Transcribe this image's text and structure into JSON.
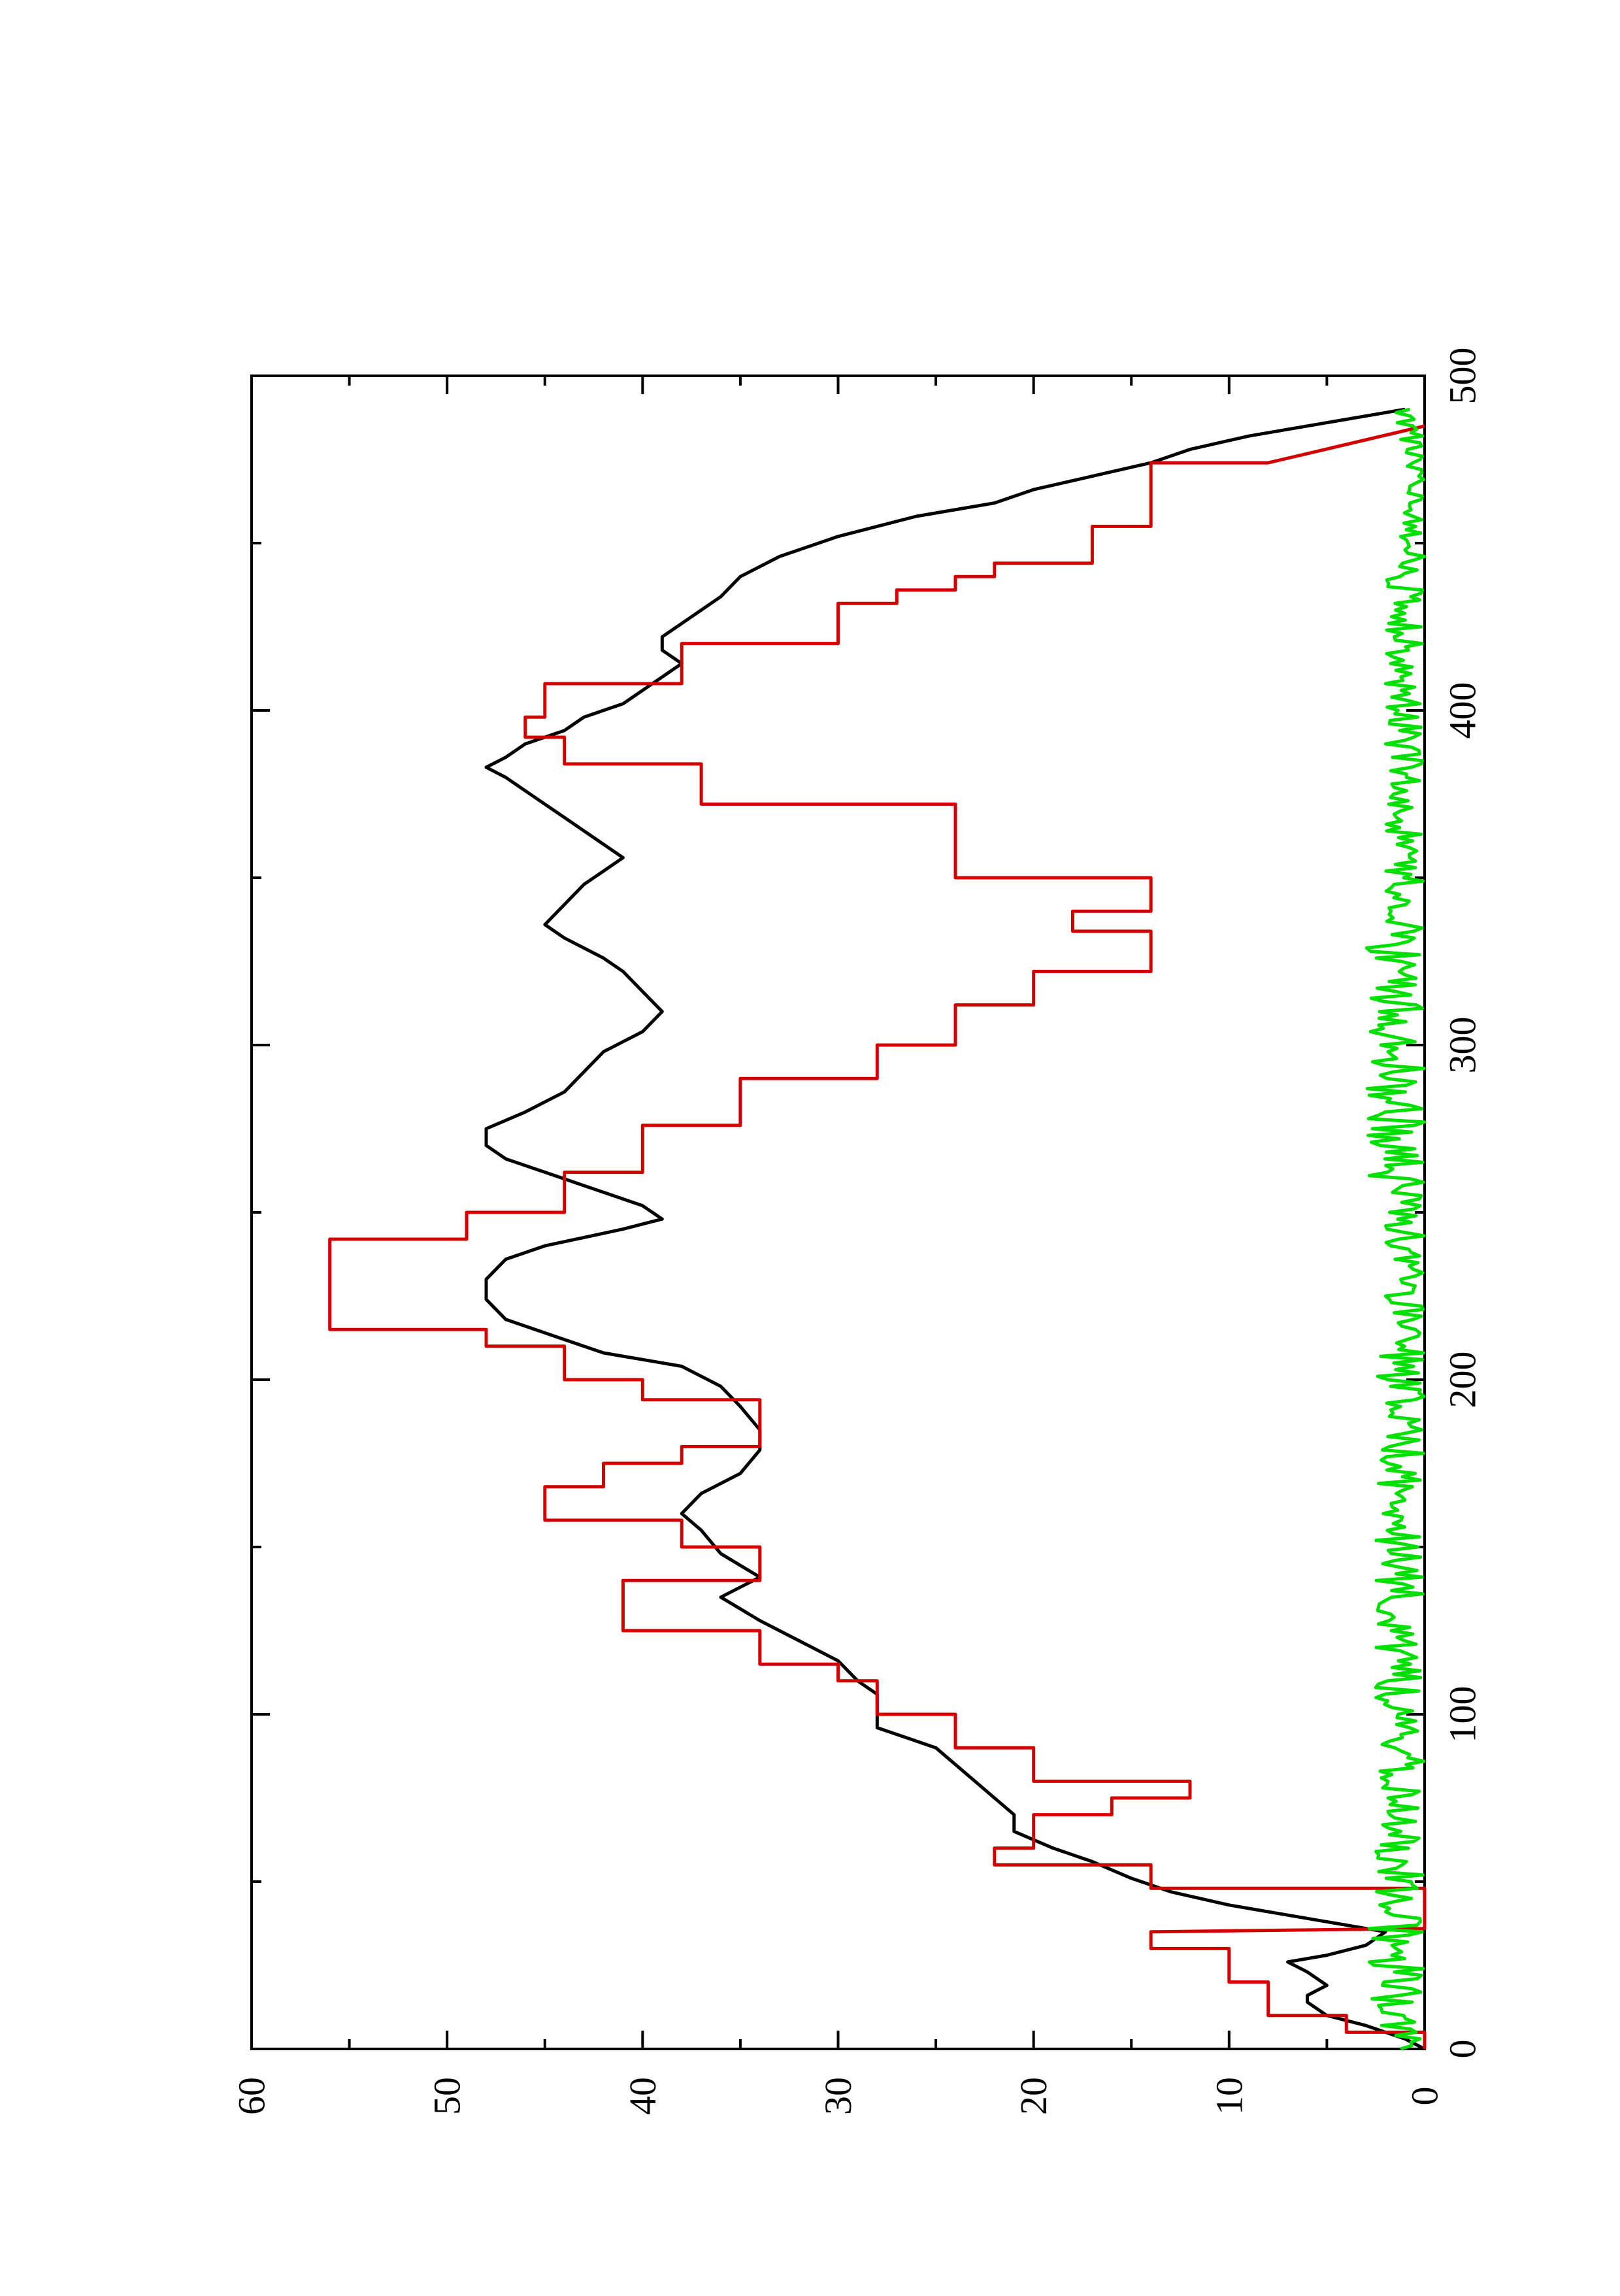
{
  "chart_data": {
    "type": "line",
    "orientation": "rotated-90-ccw",
    "xlim": [
      0,
      500
    ],
    "ylim": [
      0,
      60
    ],
    "x_ticks": [
      0,
      100,
      200,
      300,
      400,
      500
    ],
    "y_ticks": [
      0,
      10,
      20,
      30,
      40,
      50,
      60
    ],
    "grid": false,
    "series": [
      {
        "color": "#000000",
        "shape": "linear",
        "x": [
          0,
          3,
          7,
          10,
          14,
          16,
          19,
          23,
          26,
          28,
          31,
          35,
          39,
          43,
          47,
          51,
          56,
          60,
          65,
          70,
          75,
          80,
          85,
          90,
          96,
          100,
          106,
          110,
          116,
          122,
          128,
          135,
          141,
          148,
          155,
          160,
          166,
          172,
          179,
          185,
          192,
          198,
          204,
          208,
          212,
          218,
          224,
          230,
          236,
          240,
          245,
          248,
          252,
          256,
          260,
          266,
          270,
          275,
          280,
          286,
          292,
          298,
          304,
          310,
          316,
          322,
          326,
          332,
          336,
          342,
          348,
          352,
          356,
          360,
          364,
          368,
          372,
          376,
          380,
          383,
          386,
          390,
          394,
          398,
          402,
          406,
          410,
          414,
          418,
          422,
          426,
          430,
          434,
          440,
          446,
          452,
          458,
          462,
          466,
          470,
          474,
          478,
          482,
          486,
          490
        ],
        "y": [
          0,
          1,
          3,
          5,
          6,
          6,
          5,
          6,
          7,
          5,
          3,
          2,
          6,
          10,
          13,
          15,
          17,
          19,
          21,
          21,
          22,
          23,
          24,
          25,
          28,
          28,
          28,
          29,
          30,
          32,
          34,
          36,
          34,
          36,
          37,
          38,
          37,
          35,
          34,
          34,
          35,
          36,
          38,
          42,
          44,
          47,
          48,
          48,
          47,
          45,
          41,
          39,
          40,
          42,
          44,
          47,
          48,
          48,
          46,
          44,
          43,
          42,
          40,
          39,
          40,
          41,
          42,
          44,
          45,
          44,
          43,
          42,
          41,
          42,
          43,
          44,
          45,
          46,
          47,
          48,
          47,
          46,
          44,
          43,
          41,
          40,
          39,
          38,
          39,
          39,
          38,
          37,
          36,
          35,
          33,
          30,
          26,
          22,
          20,
          17,
          14,
          12,
          9,
          5,
          1
        ]
      },
      {
        "color": "#d40000",
        "shape": "linear",
        "x": [
          0,
          5,
          5,
          10,
          10,
          20,
          20,
          30,
          30,
          35,
          36,
          48,
          48,
          55,
          55,
          60,
          60,
          70,
          70,
          75,
          75,
          80,
          80,
          90,
          90,
          100,
          100,
          110,
          110,
          115,
          115,
          125,
          125,
          140,
          140,
          150,
          150,
          158,
          158,
          168,
          168,
          175,
          175,
          180,
          180,
          194,
          194,
          200,
          200,
          210,
          210,
          215,
          215,
          242,
          242,
          250,
          250,
          262,
          262,
          276,
          276,
          290,
          290,
          300,
          300,
          312,
          312,
          322,
          322,
          334,
          334,
          340,
          340,
          350,
          350,
          372,
          372,
          384,
          384,
          392,
          392,
          398,
          398,
          408,
          408,
          420,
          420,
          432,
          432,
          436,
          436,
          440,
          440,
          444,
          444,
          455,
          455,
          464,
          464,
          474,
          474,
          485
        ],
        "y": [
          0,
          0,
          4,
          4,
          8,
          8,
          10,
          10,
          14,
          14,
          0,
          0,
          14,
          14,
          22,
          22,
          20,
          20,
          16,
          16,
          12,
          12,
          20,
          20,
          24,
          24,
          28,
          28,
          30,
          30,
          34,
          34,
          41,
          41,
          34,
          34,
          38,
          38,
          45,
          45,
          42,
          42,
          38,
          38,
          34,
          34,
          40,
          40,
          44,
          44,
          48,
          48,
          56,
          56,
          49,
          49,
          44,
          44,
          40,
          40,
          35,
          35,
          28,
          28,
          24,
          24,
          20,
          20,
          14,
          14,
          18,
          18,
          14,
          14,
          24,
          24,
          37,
          37,
          44,
          44,
          46,
          46,
          45,
          45,
          38,
          38,
          30,
          30,
          27,
          27,
          24,
          24,
          22,
          22,
          17,
          17,
          14,
          14,
          14,
          14,
          8,
          0
        ]
      },
      {
        "color": "#00e000",
        "shape": "noise",
        "x_range": [
          0,
          490
        ],
        "x_step": 1,
        "band_segments": [
          {
            "x": [
              0,
              40
            ],
            "min": 0,
            "max": 3
          },
          {
            "x": [
              40,
              90
            ],
            "min": 0,
            "max": 2.5
          },
          {
            "x": [
              90,
              150
            ],
            "min": 0,
            "max": 2.5
          },
          {
            "x": [
              150,
              210
            ],
            "min": 0,
            "max": 2.5
          },
          {
            "x": [
              210,
              260
            ],
            "min": 0,
            "max": 2
          },
          {
            "x": [
              260,
              330
            ],
            "min": 0,
            "max": 3
          },
          {
            "x": [
              330,
              440
            ],
            "min": 0,
            "max": 2
          },
          {
            "x": [
              440,
              490
            ],
            "min": 0,
            "max": 1.5
          }
        ]
      }
    ]
  }
}
